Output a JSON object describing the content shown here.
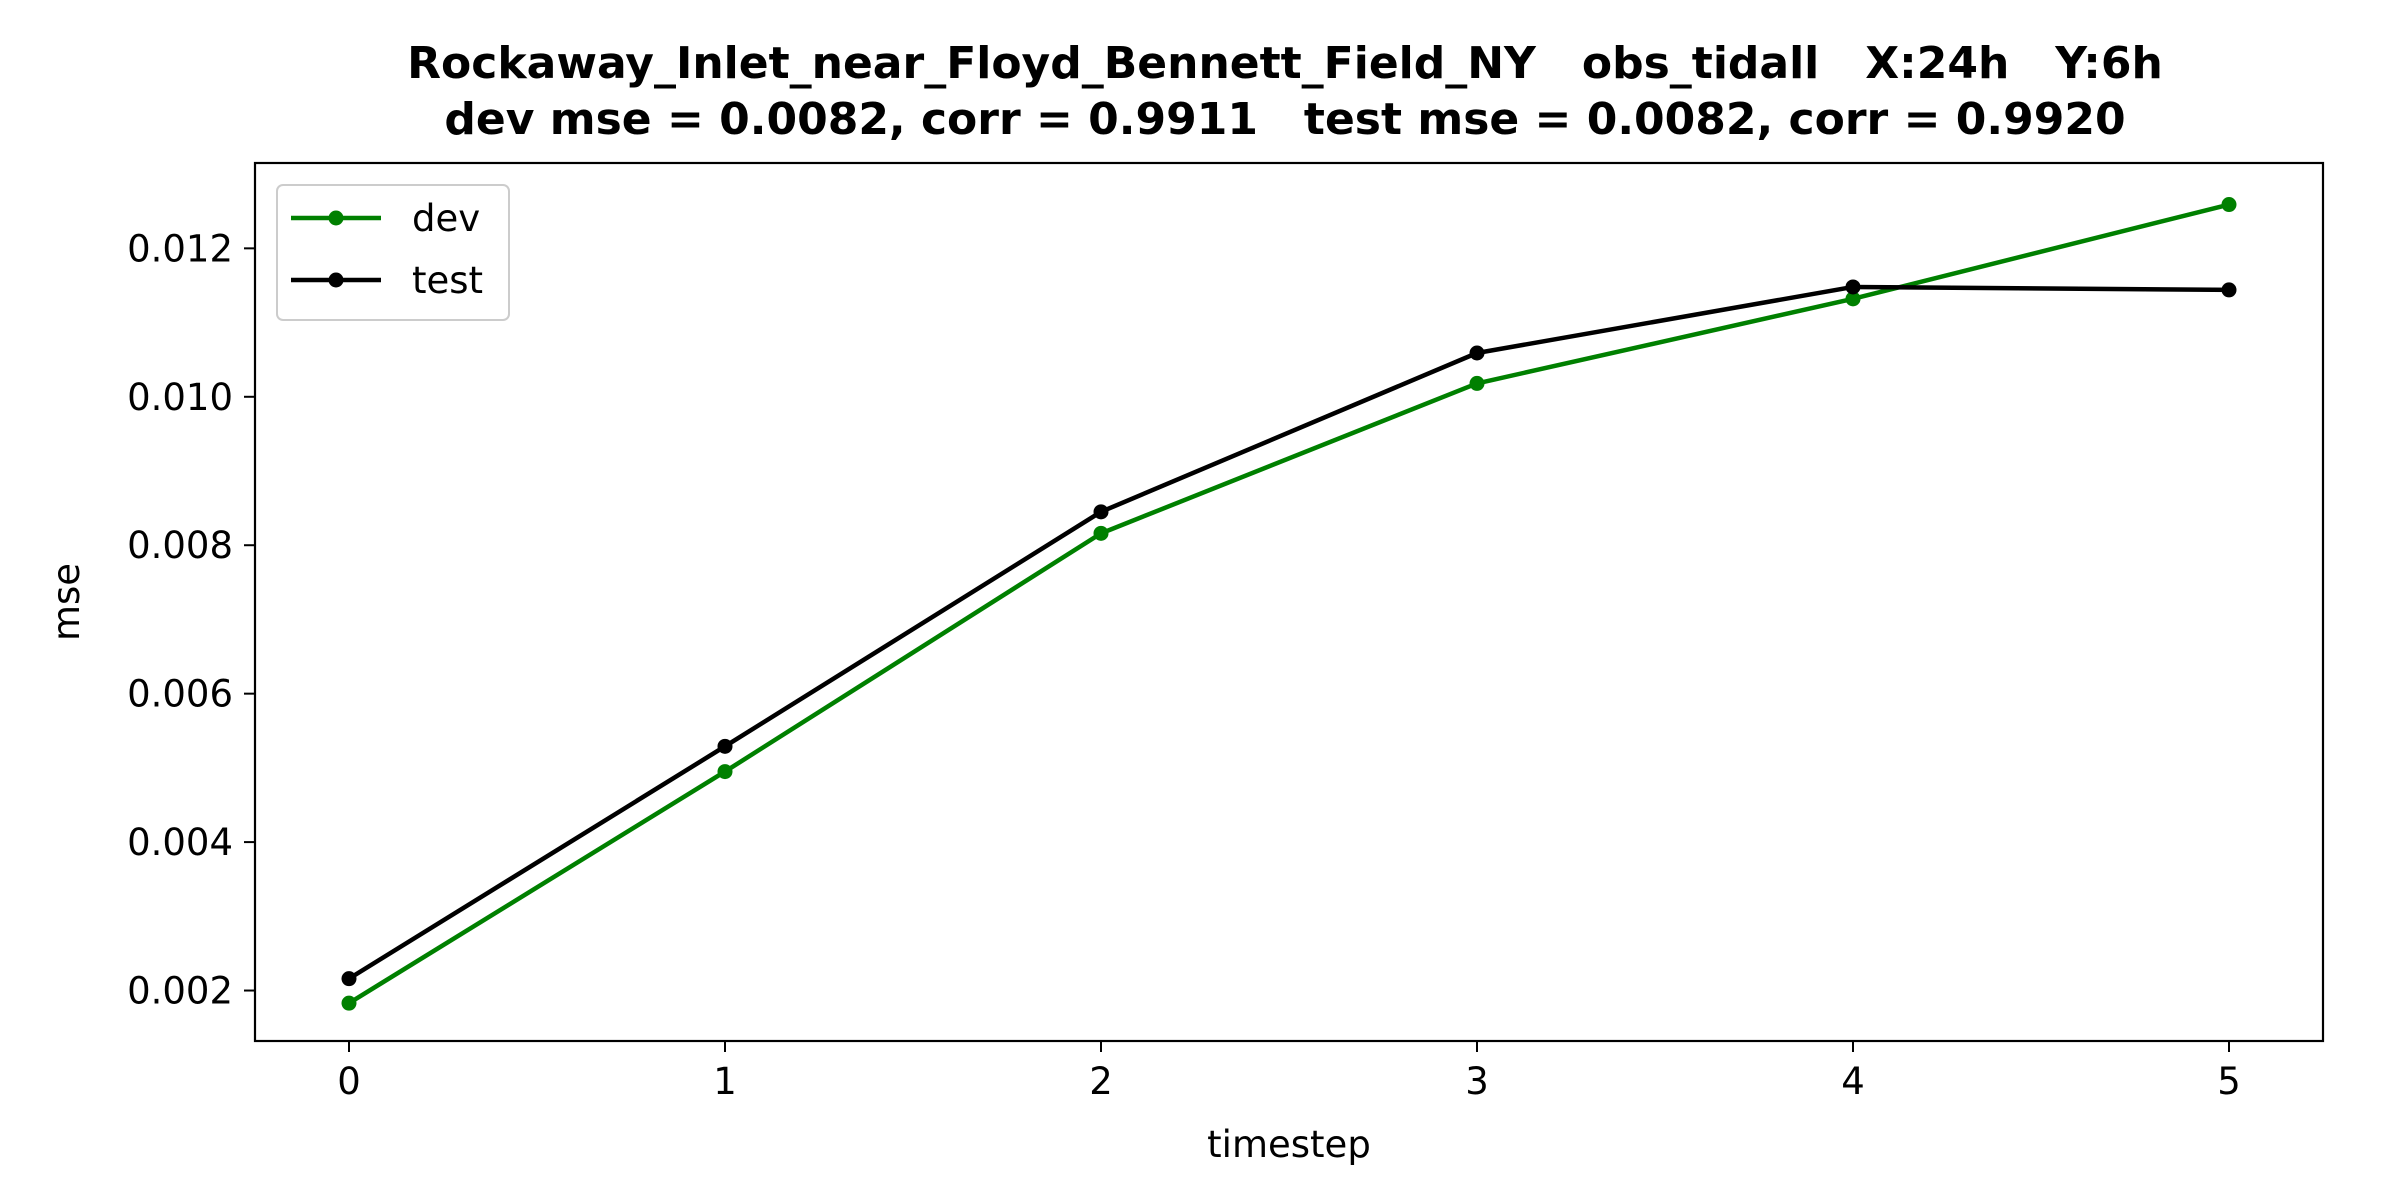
{
  "chart_data": {
    "type": "line",
    "title_line1": "Rockaway_Inlet_near_Floyd_Bennett_Field_NY   obs_tidall   X:24h   Y:6h",
    "title_line2": "dev mse = 0.0082, corr = 0.9911   test mse = 0.0082, corr = 0.9920",
    "xlabel": "timestep",
    "ylabel": "mse",
    "x": [
      0,
      1,
      2,
      3,
      4,
      5
    ],
    "x_tick_labels": [
      "0",
      "1",
      "2",
      "3",
      "4",
      "5"
    ],
    "y_tick_values": [
      0.002,
      0.004,
      0.006,
      0.008,
      0.01,
      0.012
    ],
    "y_tick_labels": [
      "0.002",
      "0.004",
      "0.006",
      "0.008",
      "0.010",
      "0.012"
    ],
    "xlim": [
      -0.25,
      5.25
    ],
    "ylim": [
      0.00132,
      0.01315
    ],
    "grid": false,
    "legend_position": "upper left",
    "series": [
      {
        "name": "dev",
        "color": "#008000",
        "marker": "circle",
        "values": [
          0.00183,
          0.00495,
          0.00816,
          0.01018,
          0.01132,
          0.01259
        ]
      },
      {
        "name": "test",
        "color": "#000000",
        "marker": "circle",
        "values": [
          0.00216,
          0.00529,
          0.00845,
          0.01059,
          0.01148,
          0.01144
        ]
      }
    ]
  }
}
